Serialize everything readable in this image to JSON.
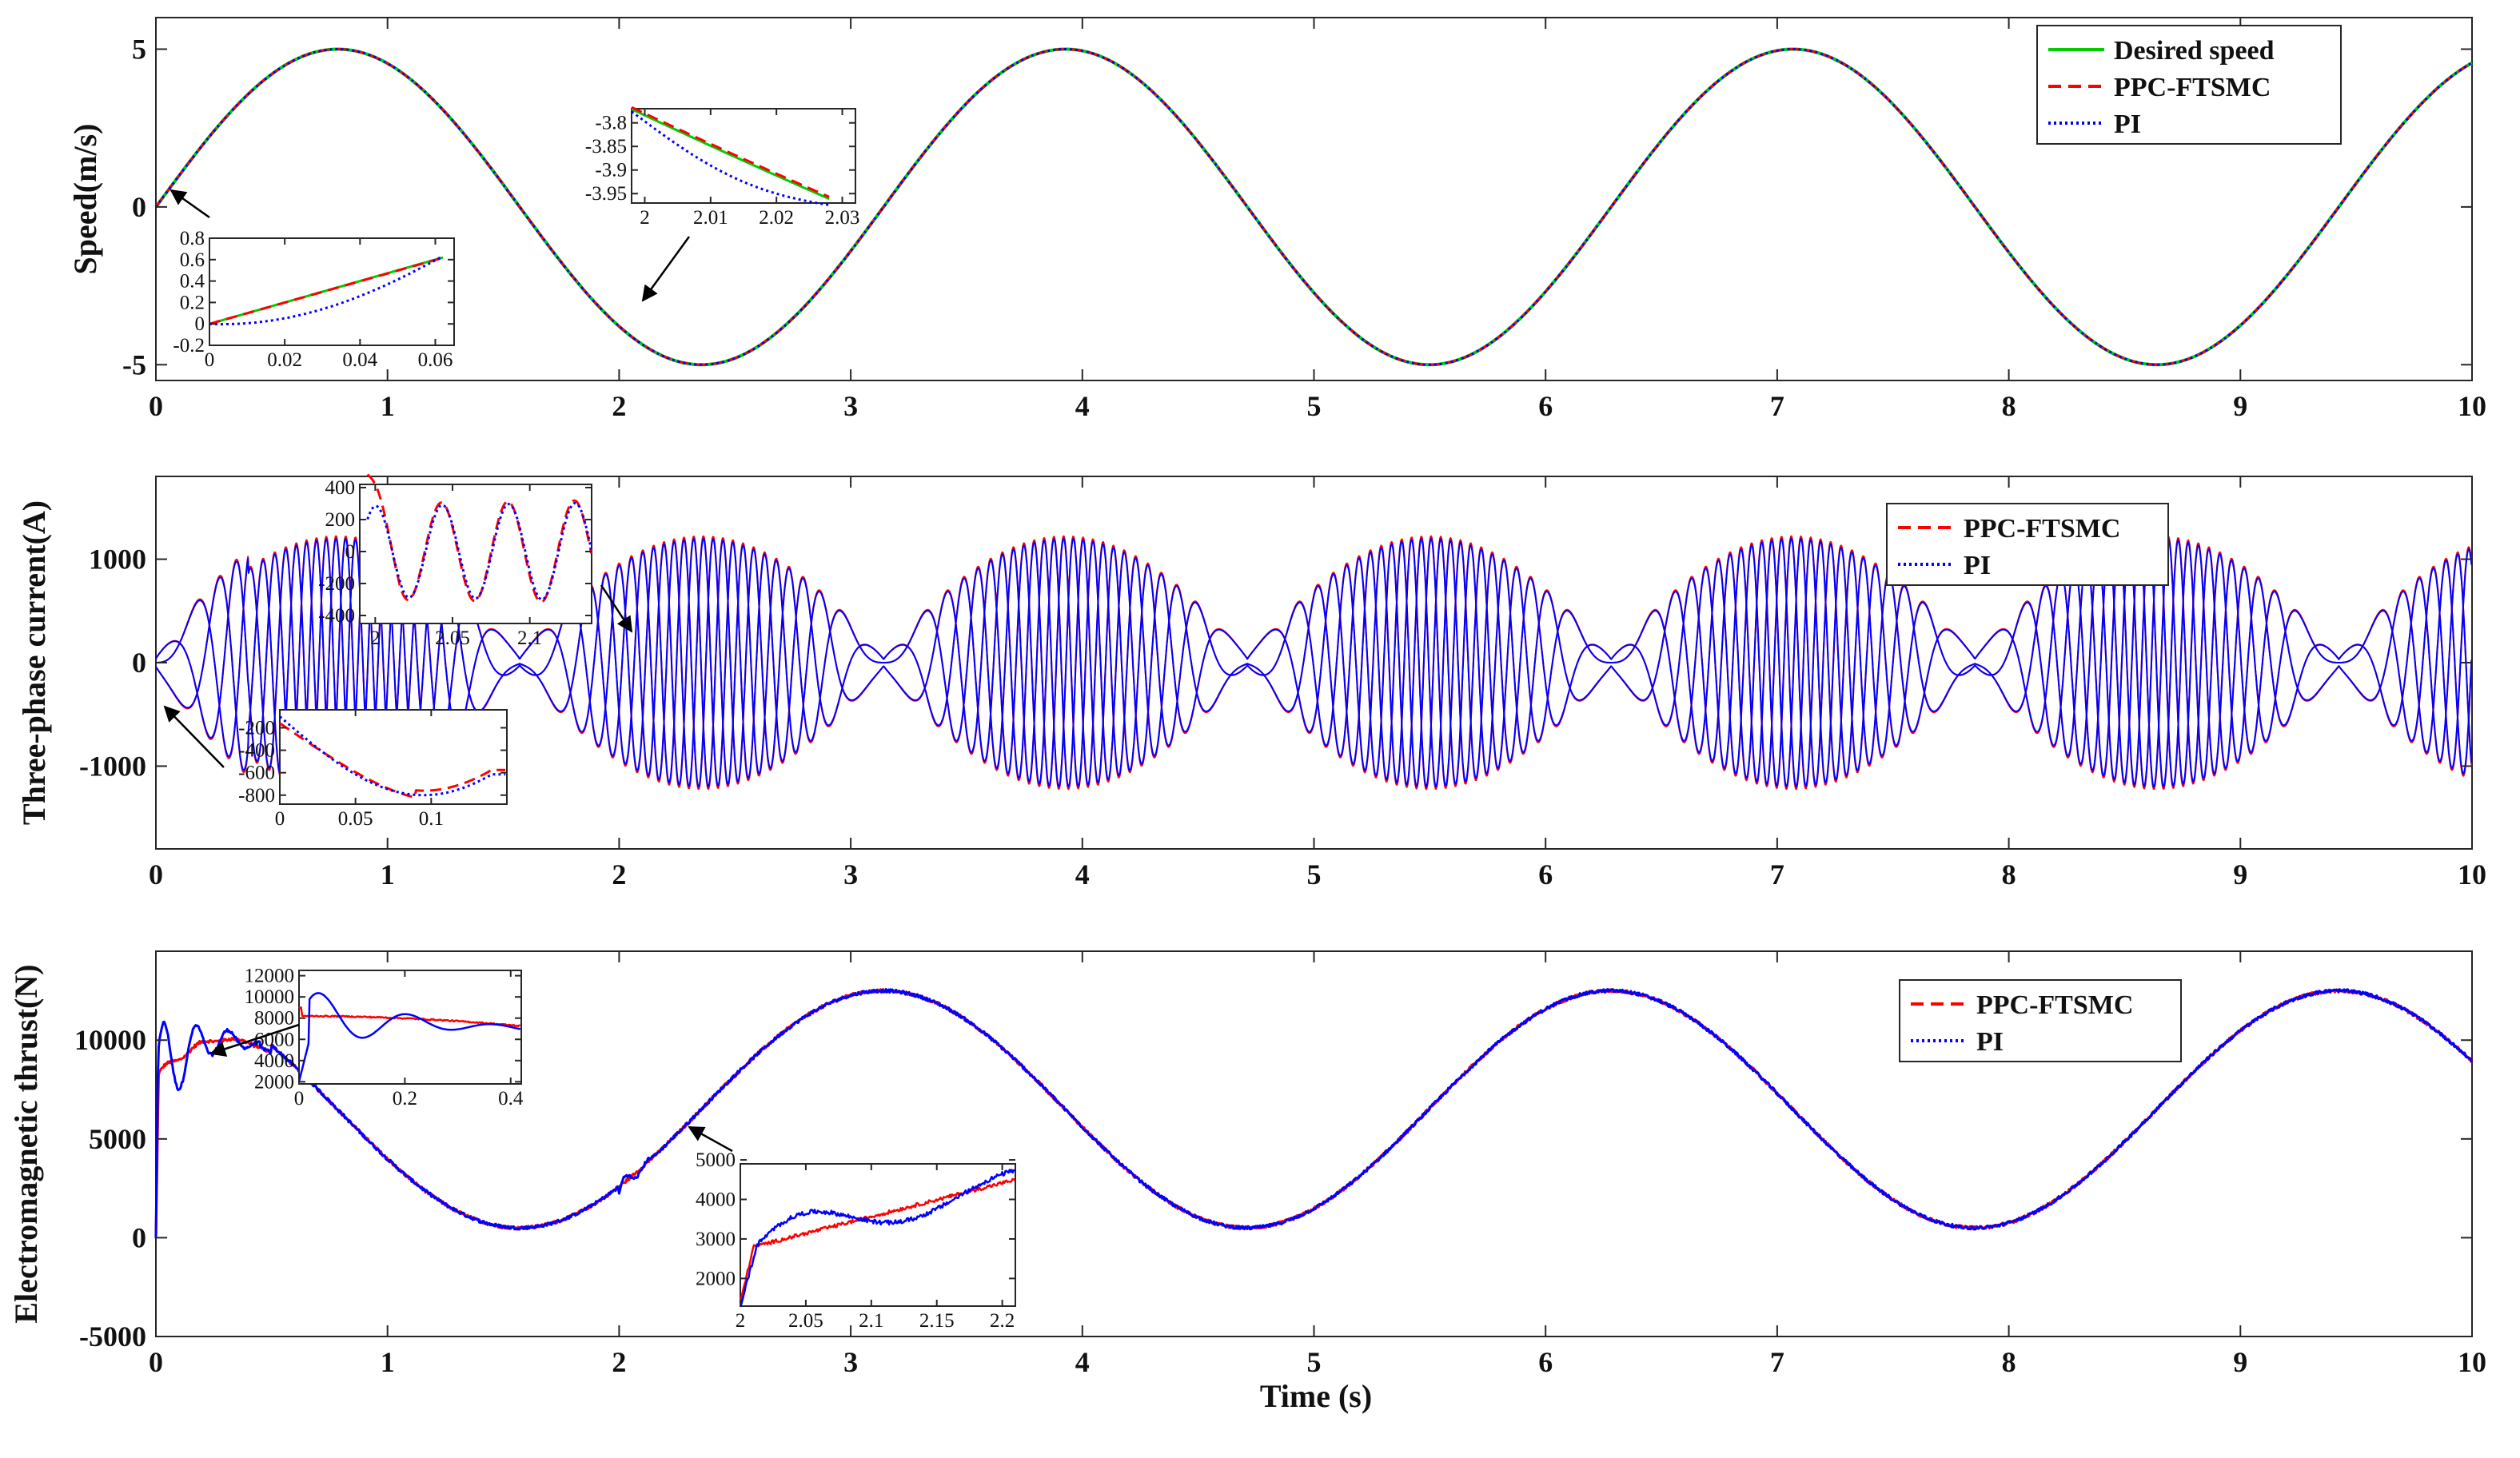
{
  "chart_data": [
    {
      "id": "speed",
      "type": "line",
      "ylabel": "Speed(m/s)",
      "xlabel": "",
      "xlim": [
        0,
        10
      ],
      "ylim": [
        -5.5,
        6
      ],
      "xticks": [
        0,
        1,
        2,
        3,
        4,
        5,
        6,
        7,
        8,
        9,
        10
      ],
      "yticks": [
        -5,
        0,
        5
      ],
      "formula": "5*sin(2*t)",
      "series": [
        {
          "name": "Desired speed",
          "color": "#00cc00",
          "style": "solid"
        },
        {
          "name": "PPC-FTSMC",
          "color": "#ff0000",
          "style": "dashed"
        },
        {
          "name": "PI",
          "color": "#0000ff",
          "style": "dotted"
        }
      ],
      "legend": "top-right",
      "insets": [
        {
          "xlim": [
            0,
            0.065
          ],
          "ylim": [
            -0.2,
            0.8
          ],
          "xticks": [
            0,
            0.02,
            0.04,
            0.06
          ],
          "yticks": [
            -0.2,
            0,
            0.2,
            0.4,
            0.6,
            0.8
          ],
          "xtick_labels": [
            "0",
            "0.02",
            "0.04",
            "0.06"
          ],
          "ytick_labels": [
            "-0.2",
            "0",
            "0.2",
            "0.4",
            "0.6",
            "0.8"
          ],
          "points_to": [
            0,
            0
          ]
        },
        {
          "xlim": [
            1.998,
            2.032
          ],
          "ylim": [
            -3.97,
            -3.77
          ],
          "xticks": [
            2,
            2.01,
            2.02,
            2.03
          ],
          "yticks": [
            -3.95,
            -3.9,
            -3.85,
            -3.8
          ],
          "xtick_labels": [
            "2",
            "2.01",
            "2.02",
            "2.03"
          ],
          "ytick_labels": [
            "-3.95",
            "-3.9",
            "-3.85",
            "-3.8"
          ],
          "points_to": [
            2.03,
            -3.95
          ]
        }
      ]
    },
    {
      "id": "current",
      "type": "line",
      "ylabel": "Three-phase current(A)",
      "xlabel": "",
      "xlim": [
        0,
        10
      ],
      "ylim": [
        -1800,
        1800
      ],
      "xticks": [
        0,
        1,
        2,
        3,
        4,
        5,
        6,
        7,
        8,
        9,
        10
      ],
      "yticks": [
        -1000,
        0,
        1000
      ],
      "approx_peak_amplitude": 1200,
      "series": [
        {
          "name": "PPC-FTSMC",
          "color": "#ff0000",
          "style": "dashed"
        },
        {
          "name": "PI",
          "color": "#0000ff",
          "style": "dotted"
        }
      ],
      "legend": "top-right",
      "insets": [
        {
          "xlim": [
            1.99,
            2.14
          ],
          "ylim": [
            -450,
            420
          ],
          "xticks": [
            2,
            2.05,
            2.1
          ],
          "yticks": [
            -400,
            -200,
            0,
            200,
            400
          ],
          "xtick_labels": [
            "2",
            "2.05",
            "2.1"
          ],
          "ytick_labels": [
            "-400",
            "-200",
            "0",
            "200",
            "400"
          ],
          "points_to": [
            2.02,
            350
          ]
        },
        {
          "xlim": [
            0,
            0.15
          ],
          "ylim": [
            -880,
            -40
          ],
          "xticks": [
            0,
            0.05,
            0.1
          ],
          "yticks": [
            -800,
            -600,
            -400,
            -200
          ],
          "xtick_labels": [
            "0",
            "0.05",
            "0.1"
          ],
          "ytick_labels": [
            "-800",
            "-600",
            "-400",
            "-200"
          ],
          "points_to": [
            0.04,
            -350
          ]
        }
      ]
    },
    {
      "id": "thrust",
      "type": "line",
      "ylabel": "Electromagnetic thrust(N)",
      "xlabel": "Time (s)",
      "xlim": [
        0,
        10
      ],
      "ylim": [
        -5000,
        14500
      ],
      "xticks": [
        0,
        1,
        2,
        3,
        4,
        5,
        6,
        7,
        8,
        9,
        10
      ],
      "yticks": [
        -5000,
        0,
        5000,
        10000
      ],
      "approx_model": "6500 + 6000*cos(2*(t-3.14))",
      "series": [
        {
          "name": "PPC-FTSMC",
          "color": "#ff0000",
          "style": "dashed"
        },
        {
          "name": "PI",
          "color": "#0000ff",
          "style": "dotted"
        }
      ],
      "legend": "top-right",
      "insets": [
        {
          "xlim": [
            0,
            0.42
          ],
          "ylim": [
            1800,
            12500
          ],
          "xticks": [
            0,
            0.2,
            0.4
          ],
          "yticks": [
            2000,
            4000,
            6000,
            8000,
            10000,
            12000
          ],
          "xtick_labels": [
            "0",
            "0.2",
            "0.4"
          ],
          "ytick_labels": [
            "2000",
            "4000",
            "6000",
            "8000",
            "10000",
            "12000"
          ],
          "points_to": [
            0.25,
            7800
          ]
        },
        {
          "xlim": [
            2.0,
            2.21
          ],
          "ylim": [
            1300,
            4900
          ],
          "xticks": [
            2,
            2.05,
            2.1,
            2.15,
            2.2
          ],
          "yticks": [
            2000,
            3000,
            4000,
            5000
          ],
          "xtick_labels": [
            "2",
            "2.05",
            "2.1",
            "2.15",
            "2.2"
          ],
          "ytick_labels": [
            "2000",
            "3000",
            "4000",
            "5000"
          ],
          "points_to": [
            2.1,
            3400
          ]
        }
      ]
    }
  ]
}
